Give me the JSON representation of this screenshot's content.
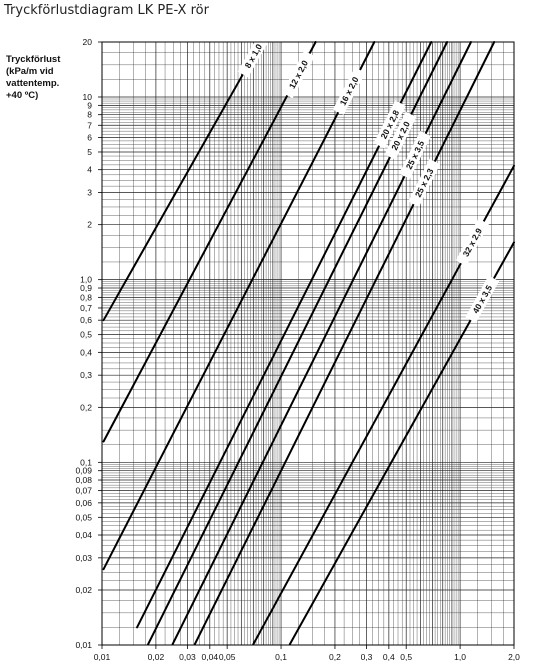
{
  "page_title": "Tryckförlustdiagram LK PE-X rör",
  "chart_data": {
    "type": "line",
    "title": "Tryckförlustdiagram LK PE-X rör",
    "ylabel_lines": [
      "Tryckförlust",
      "(kPa/m vid",
      "vattentemp.",
      "+40 ºC)"
    ],
    "xlabel": "",
    "x_scale": "log",
    "y_scale": "log",
    "xlim": [
      0.01,
      2.0
    ],
    "ylim": [
      0.01,
      20
    ],
    "grid": true,
    "x_ticks": [
      {
        "v": 0.01,
        "label": "0,01"
      },
      {
        "v": 0.02,
        "label": "0,02"
      },
      {
        "v": 0.03,
        "label": "0,03"
      },
      {
        "v": 0.04,
        "label": "0,04"
      },
      {
        "v": 0.05,
        "label": "0,05"
      },
      {
        "v": 0.1,
        "label": "0,1"
      },
      {
        "v": 0.2,
        "label": "0,2"
      },
      {
        "v": 0.3,
        "label": "0,3"
      },
      {
        "v": 0.4,
        "label": "0,4"
      },
      {
        "v": 0.5,
        "label": "0,5"
      },
      {
        "v": 1.0,
        "label": "1,0"
      },
      {
        "v": 2.0,
        "label": "2,0"
      }
    ],
    "y_ticks": [
      {
        "v": 0.01,
        "label": "0,01"
      },
      {
        "v": 0.02,
        "label": "0,02"
      },
      {
        "v": 0.03,
        "label": "0,03"
      },
      {
        "v": 0.04,
        "label": "0,04"
      },
      {
        "v": 0.05,
        "label": "0,05"
      },
      {
        "v": 0.06,
        "label": "0,06"
      },
      {
        "v": 0.07,
        "label": "0,07"
      },
      {
        "v": 0.08,
        "label": "0,08"
      },
      {
        "v": 0.09,
        "label": "0,09"
      },
      {
        "v": 0.1,
        "label": "0,1"
      },
      {
        "v": 0.2,
        "label": "0,2"
      },
      {
        "v": 0.3,
        "label": "0,3"
      },
      {
        "v": 0.4,
        "label": "0,4"
      },
      {
        "v": 0.5,
        "label": "0,5"
      },
      {
        "v": 0.6,
        "label": "0,6"
      },
      {
        "v": 0.7,
        "label": "0,7"
      },
      {
        "v": 0.8,
        "label": "0,8"
      },
      {
        "v": 0.9,
        "label": "0,9"
      },
      {
        "v": 1.0,
        "label": "1,0"
      },
      {
        "v": 2,
        "label": "2"
      },
      {
        "v": 3,
        "label": "3"
      },
      {
        "v": 4,
        "label": "4"
      },
      {
        "v": 5,
        "label": "5"
      },
      {
        "v": 6,
        "label": "6"
      },
      {
        "v": 7,
        "label": "7"
      },
      {
        "v": 8,
        "label": "8"
      },
      {
        "v": 9,
        "label": "9"
      },
      {
        "v": 10,
        "label": "10"
      },
      {
        "v": 20,
        "label": "20"
      }
    ],
    "series": [
      {
        "name": "8 x 1,0",
        "points": [
          [
            0.0102,
            0.6
          ],
          [
            0.0775,
            20
          ]
        ],
        "label_at": 0.07
      },
      {
        "name": "12 x 2,0",
        "points": [
          [
            0.0102,
            0.13
          ],
          [
            0.156,
            20
          ]
        ],
        "label_at": 0.125
      },
      {
        "name": "16 x 2,0",
        "points": [
          [
            0.0102,
            0.026
          ],
          [
            0.332,
            20
          ]
        ],
        "label_at": 0.24
      },
      {
        "name": "20 x 2,8",
        "points": [
          [
            0.0157,
            0.0125
          ],
          [
            0.69,
            20
          ]
        ],
        "label_at": 0.405
      },
      {
        "name": "20 x 2,0",
        "points": [
          [
            0.0181,
            0.0101
          ],
          [
            0.846,
            20
          ]
        ],
        "label_at": 0.465
      },
      {
        "name": "25 x 3,5",
        "points": [
          [
            0.0248,
            0.0101
          ],
          [
            1.15,
            20
          ]
        ],
        "label_at": 0.56
      },
      {
        "name": "25 x 2,3",
        "points": [
          [
            0.033,
            0.0101
          ],
          [
            1.55,
            20
          ]
        ],
        "label_at": 0.63
      },
      {
        "name": "32 x 2,9",
        "points": [
          [
            0.07,
            0.0101
          ],
          [
            2.0,
            4.2
          ]
        ],
        "label_at": 1.17
      },
      {
        "name": "40 x 3,5",
        "points": [
          [
            0.112,
            0.0101
          ],
          [
            2.0,
            1.6
          ]
        ],
        "label_at": 1.33
      }
    ]
  }
}
